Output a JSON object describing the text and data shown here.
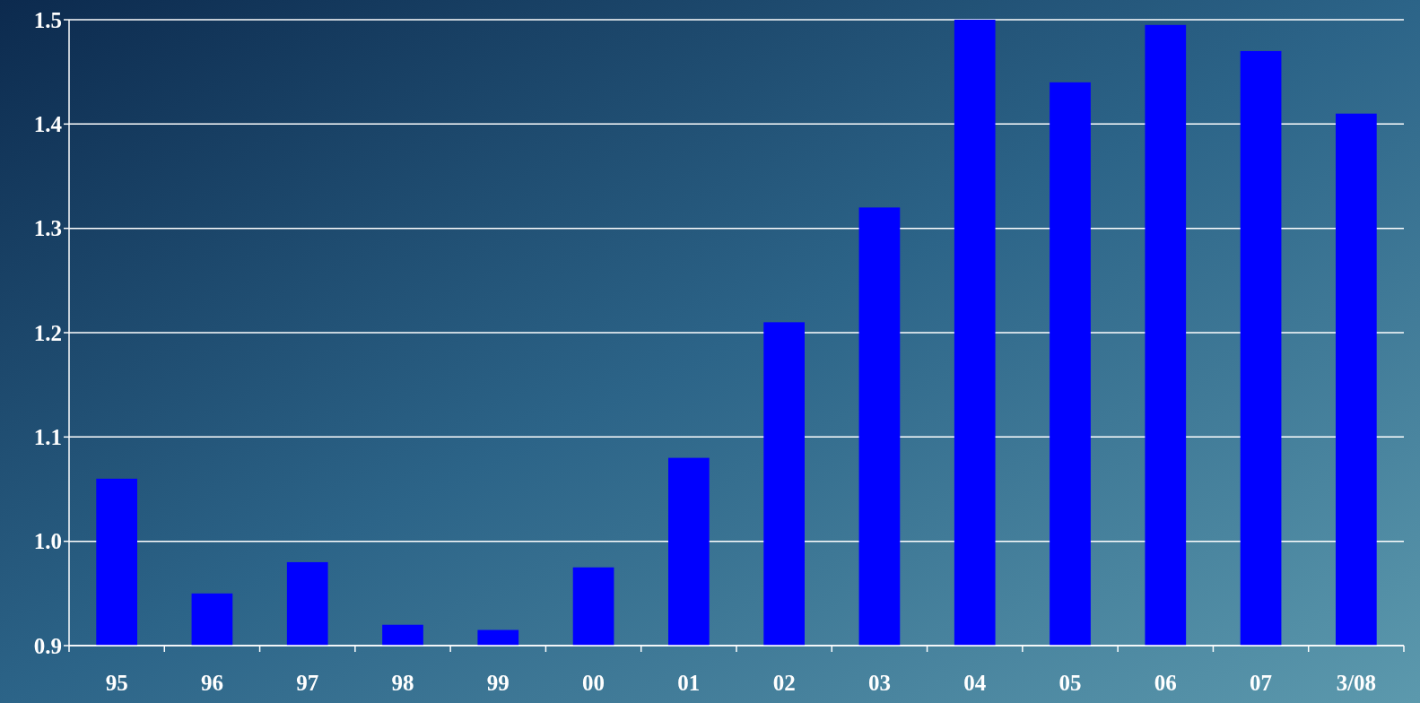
{
  "chart_data": {
    "type": "bar",
    "categories": [
      "95",
      "96",
      "97",
      "98",
      "99",
      "00",
      "01",
      "02",
      "03",
      "04",
      "05",
      "06",
      "07",
      "3/08"
    ],
    "values": [
      1.06,
      0.95,
      0.98,
      0.92,
      0.915,
      0.975,
      1.08,
      1.21,
      1.32,
      1.5,
      1.44,
      1.495,
      1.47,
      1.41
    ],
    "color": "#0000ff",
    "ylim": [
      0.9,
      1.5
    ],
    "yticks": [
      {
        "value": 0.9,
        "label": "0.9"
      },
      {
        "value": 1.0,
        "label": "1.0"
      },
      {
        "value": 1.1,
        "label": "1.1"
      },
      {
        "value": 1.2,
        "label": "1.2"
      },
      {
        "value": 1.3,
        "label": "1.3"
      },
      {
        "value": 1.4,
        "label": "1.4"
      },
      {
        "value": 1.5,
        "label": "1.5"
      }
    ],
    "grid": "y"
  }
}
